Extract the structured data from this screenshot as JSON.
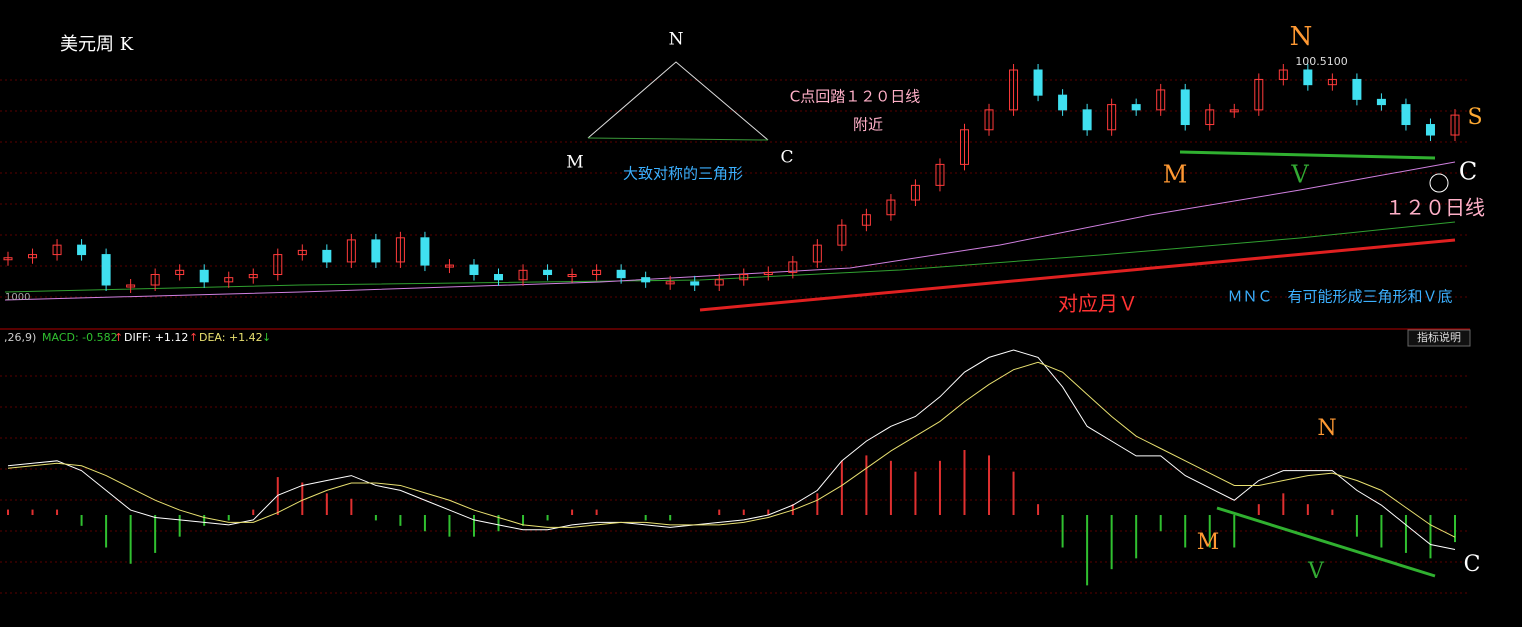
{
  "chart_data": [
    {
      "type": "candlestick",
      "title": "美元周 K",
      "peak_label": "100.5100",
      "edge_label": "1000",
      "values": [
        82.1,
        82.4,
        83.3,
        82.4,
        79.5,
        79.5,
        80.5,
        80.9,
        79.8,
        80.2,
        80.5,
        82.4,
        82.8,
        81.7,
        83.8,
        81.7,
        84.0,
        81.4,
        81.4,
        80.5,
        80.0,
        80.9,
        80.5,
        80.5,
        80.9,
        80.2,
        79.8,
        79.8,
        79.5,
        80.0,
        80.5,
        80.7,
        81.7,
        83.3,
        85.2,
        86.2,
        87.6,
        89.0,
        91.0,
        94.3,
        96.2,
        100.0,
        97.6,
        96.2,
        94.3,
        96.7,
        96.2,
        98.1,
        94.8,
        96.2,
        96.2,
        99.1,
        100.0,
        98.6,
        99.1,
        97.2,
        96.7,
        94.8,
        93.8,
        95.7
      ],
      "up_color": "#ff3b3b",
      "down_color": "#40e0f0",
      "annotations": [
        "N",
        "M",
        "C",
        "C点回踏１２０日线",
        "附近",
        "大致对称的三角形",
        "N",
        "S",
        "M",
        "V",
        "C",
        "１２０日线",
        "对应月Ｖ",
        "ＭＮＣ　有可能形成三角形和Ｖ底"
      ]
    },
    {
      "type": "macd",
      "header": [
        ",26,9)",
        "MACD: -0.582",
        "↑",
        "DIFF: +1.12",
        "↑",
        "DEA: +1.42",
        "↓"
      ],
      "button": "指标说明",
      "series": [
        {
          "color": "#ffffff",
          "values": [
            2.0,
            2.1,
            2.2,
            1.8,
            1.0,
            0.2,
            -0.1,
            -0.2,
            -0.3,
            -0.4,
            -0.2,
            0.8,
            1.2,
            1.4,
            1.6,
            1.2,
            1.0,
            0.6,
            0.2,
            -0.2,
            -0.4,
            -0.6,
            -0.6,
            -0.4,
            -0.3,
            -0.3,
            -0.4,
            -0.5,
            -0.4,
            -0.3,
            -0.2,
            0,
            0.4,
            1.0,
            2.2,
            3.0,
            3.6,
            4.0,
            4.8,
            5.8,
            6.4,
            6.7,
            6.4,
            5.2,
            3.6,
            3.0,
            2.4,
            2.4,
            1.6,
            1.1,
            0.6,
            1.4,
            1.8,
            1.8,
            1.8,
            1.0,
            0.4,
            -0.4,
            -1.2,
            -1.4
          ]
        },
        {
          "color": "#e8e070",
          "values": [
            1.9,
            2.0,
            2.1,
            2.0,
            1.6,
            1.1,
            0.6,
            0.2,
            -0.1,
            -0.3,
            -0.3,
            0.1,
            0.6,
            1.0,
            1.3,
            1.3,
            1.2,
            0.9,
            0.6,
            0.2,
            -0.1,
            -0.4,
            -0.5,
            -0.5,
            -0.4,
            -0.3,
            -0.3,
            -0.4,
            -0.4,
            -0.4,
            -0.3,
            -0.1,
            0.2,
            0.6,
            1.2,
            1.9,
            2.6,
            3.2,
            3.8,
            4.6,
            5.3,
            5.9,
            6.2,
            5.8,
            4.9,
            4.0,
            3.2,
            2.7,
            2.2,
            1.7,
            1.2,
            1.2,
            1.4,
            1.6,
            1.7,
            1.4,
            1.0,
            0.3,
            -0.4,
            -0.9
          ]
        }
      ],
      "histogram": [
        0.2,
        0.2,
        0.2,
        -0.4,
        -1.2,
        -1.8,
        -1.4,
        -0.8,
        -0.4,
        -0.2,
        0.2,
        1.4,
        1.2,
        0.8,
        0.6,
        -0.2,
        -0.4,
        -0.6,
        -0.8,
        -0.8,
        -0.6,
        -0.4,
        -0.2,
        0.2,
        0.2,
        0,
        -0.2,
        -0.2,
        0,
        0.2,
        0.2,
        0.2,
        0.4,
        0.8,
        2.0,
        2.2,
        2.0,
        1.6,
        2.0,
        2.4,
        2.2,
        1.6,
        0.4,
        -1.2,
        -2.6,
        -2.0,
        -1.6,
        -0.6,
        -1.2,
        -1.2,
        -1.2,
        0.4,
        0.8,
        0.4,
        0.2,
        -0.8,
        -1.2,
        -1.4,
        -1.6,
        -1.0
      ],
      "pos_color": "#e03030",
      "neg_color": "#30c030",
      "annotations": [
        "N",
        "M",
        "V",
        "C"
      ]
    }
  ]
}
